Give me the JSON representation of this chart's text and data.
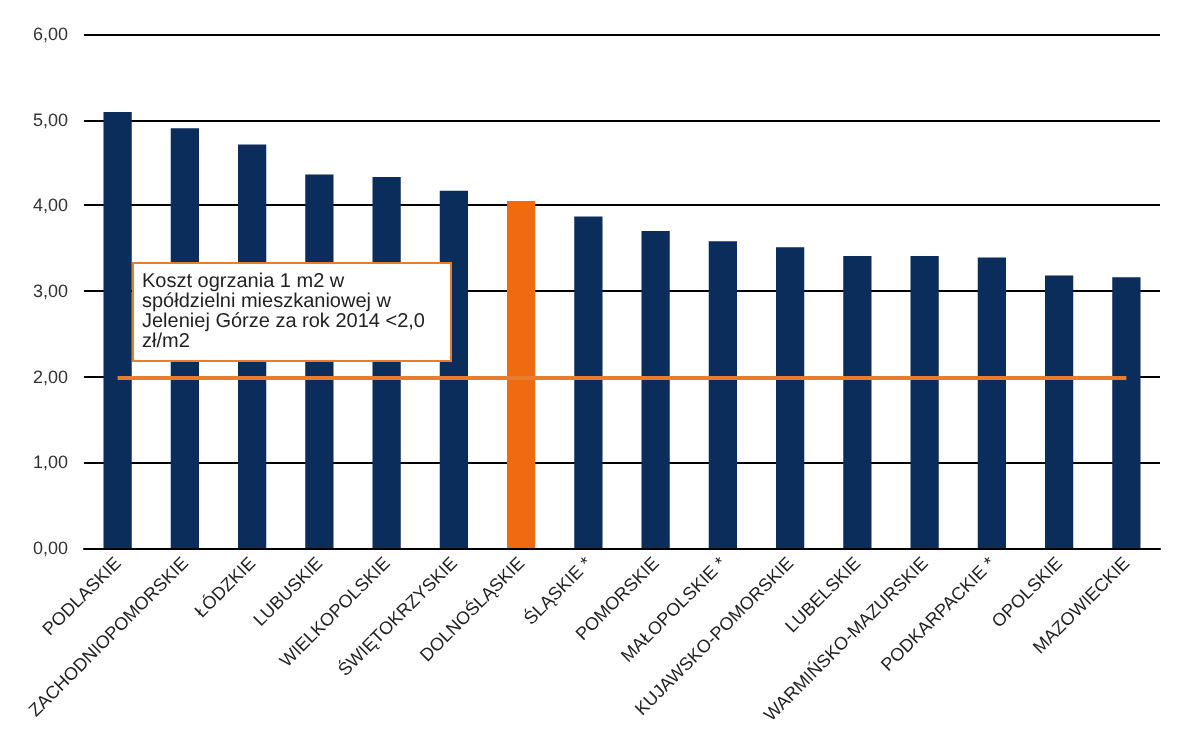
{
  "chart_data": {
    "type": "bar",
    "categories": [
      "PODLASKIE",
      "ZACHODNIOPOMORSKIE",
      "ŁÓDZKIE",
      "LUBUSKIE",
      "WIELKOPOLSKIE",
      "ŚWIĘTOKRZYSKIE",
      "DOLNOŚLĄSKIE",
      "ŚLĄSKIE *",
      "POMORSKIE",
      "MAŁOPOLSKIE *",
      "KUJAWSKO-POMORSKIE",
      "LUBELSKIE",
      "WARMIŃSKO-MAZURSKIE",
      "PODKARPACKIE *",
      "OPOLSKIE",
      "MAZOWIECKIE"
    ],
    "values": [
      5.09,
      4.9,
      4.71,
      4.36,
      4.33,
      4.17,
      4.05,
      3.87,
      3.7,
      3.58,
      3.51,
      3.41,
      3.41,
      3.39,
      3.18,
      3.16
    ],
    "colors": [
      "#0b2d5b",
      "#0b2d5b",
      "#0b2d5b",
      "#0b2d5b",
      "#0b2d5b",
      "#0b2d5b",
      "#f06a10",
      "#0b2d5b",
      "#0b2d5b",
      "#0b2d5b",
      "#0b2d5b",
      "#0b2d5b",
      "#0b2d5b",
      "#0b2d5b",
      "#0b2d5b",
      "#0b2d5b"
    ],
    "ylim": [
      0,
      6
    ],
    "yticks": [
      {
        "value": 0,
        "label": "0,00"
      },
      {
        "value": 1,
        "label": "1,00"
      },
      {
        "value": 2,
        "label": "2,00"
      },
      {
        "value": 3,
        "label": "3,00"
      },
      {
        "value": 4,
        "label": "4,00"
      },
      {
        "value": 5,
        "label": "5,00"
      },
      {
        "value": 6,
        "label": "6,00"
      }
    ],
    "grid": "y",
    "ref_lines": [
      {
        "axis": "y",
        "value": 2,
        "label": "Koszt ogrzania 1 m2 w spółdzielni mieszkaniowej w Jeleniej Górze za rok 2014 <2,0 zł/m2",
        "color": "#e87d2e"
      }
    ]
  }
}
